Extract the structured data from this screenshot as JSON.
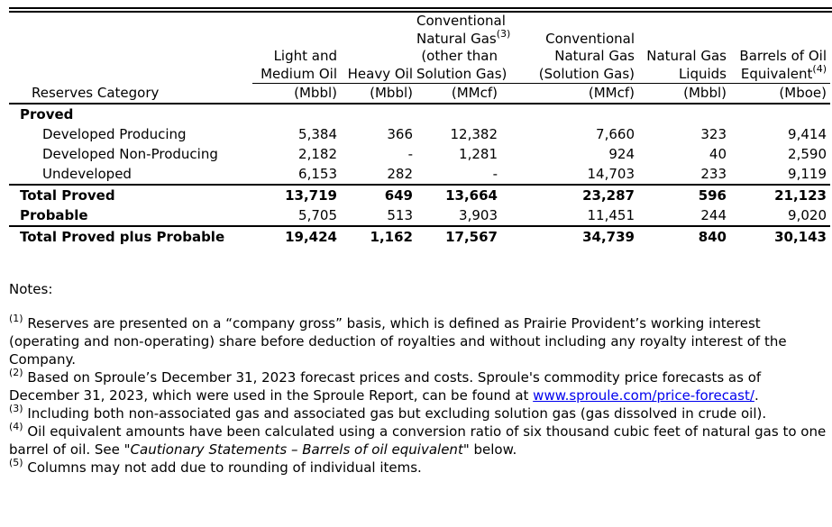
{
  "table": {
    "columns": [
      {
        "label_lines": [
          "Reserves Category"
        ],
        "unit": ""
      },
      {
        "label_lines": [
          "Light and",
          "Medium Oil"
        ],
        "unit": "(Mbbl)"
      },
      {
        "label_lines": [
          "Heavy Oil"
        ],
        "unit": "(Mbbl)"
      },
      {
        "label_lines": [
          "Conventional",
          "Natural Gas",
          "(other than",
          "Solution Gas)"
        ],
        "sup": "(3)",
        "unit": "(MMcf)"
      },
      {
        "label_lines": [
          "Conventional",
          "Natural Gas",
          "(Solution Gas)"
        ],
        "unit": "(MMcf)"
      },
      {
        "label_lines": [
          "Natural Gas",
          "Liquids"
        ],
        "unit": "(Mbbl)"
      },
      {
        "label_lines": [
          "Barrels of Oil",
          "Equivalent"
        ],
        "sup": "(4)",
        "unit": "(Mboe)"
      }
    ],
    "rows": [
      {
        "label": "Proved",
        "values": [
          "",
          "",
          "",
          "",
          "",
          ""
        ]
      },
      {
        "label": "Developed Producing",
        "values": [
          "5,384",
          "366",
          "12,382",
          "7,660",
          "323",
          "9,414"
        ]
      },
      {
        "label": "Developed Non-Producing",
        "values": [
          "2,182",
          "-",
          "1,281",
          "924",
          "40",
          "2,590"
        ]
      },
      {
        "label": "Undeveloped",
        "values": [
          "6,153",
          "282",
          "-",
          "14,703",
          "233",
          "9,119"
        ]
      },
      {
        "label": "Total Proved",
        "values": [
          "13,719",
          "649",
          "13,664",
          "23,287",
          "596",
          "21,123"
        ]
      },
      {
        "label": "Probable",
        "values": [
          "5,705",
          "513",
          "3,903",
          "11,451",
          "244",
          "9,020"
        ]
      },
      {
        "label": "Total Proved plus Probable",
        "values": [
          "19,424",
          "1,162",
          "17,567",
          "34,739",
          "840",
          "30,143"
        ]
      }
    ]
  },
  "notes": {
    "title": "Notes:",
    "items": [
      {
        "num": "(1)",
        "text": "Reserves are presented on a “company gross” basis, which is defined as Prairie Provident’s working interest (operating and non-operating) share before deduction of royalties and without including any royalty interest of the Company."
      },
      {
        "num": "(2)",
        "text": "Based on Sproule’s December 31, 2023 forecast prices and costs. Sproule's commodity price forecasts as of December 31, 2023, which were used in the Sproule Report, can be found at ",
        "link": "www.sproule.com/price-forecast/",
        "after": "."
      },
      {
        "num": "(3)",
        "text": "Including both non-associated gas and associated gas but excluding solution gas (gas dissolved in crude oil)."
      },
      {
        "num": "(4)",
        "text": "Oil equivalent amounts have been calculated using a conversion ratio of six thousand cubic feet of natural gas to one barrel of oil. See \"",
        "italic": "Cautionary Statements – Barrels of oil equivalent",
        "after": "\" below."
      },
      {
        "num": "(5)",
        "text": "Columns may not add due to rounding of individual items."
      }
    ]
  }
}
